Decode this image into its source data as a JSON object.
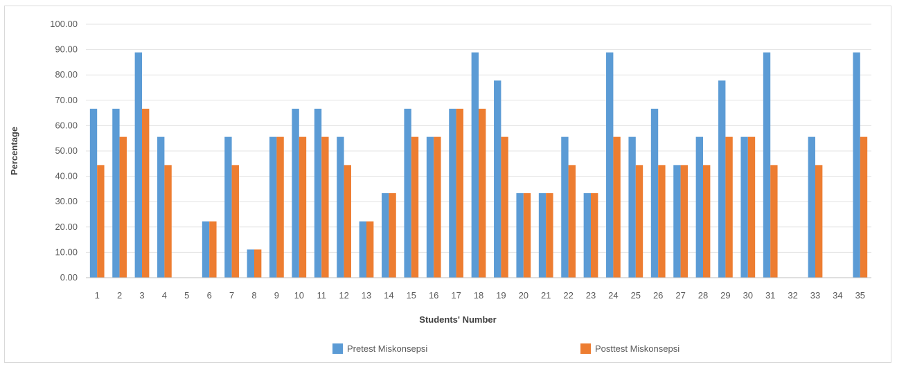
{
  "chart_data": {
    "type": "bar",
    "title": "",
    "xlabel": "Students' Number",
    "ylabel": "Percentage",
    "ylim": [
      0,
      100
    ],
    "y_ticks": [
      "0.00",
      "10.00",
      "20.00",
      "30.00",
      "40.00",
      "50.00",
      "60.00",
      "70.00",
      "80.00",
      "90.00",
      "100.00"
    ],
    "grid": true,
    "legend_position": "bottom",
    "categories": [
      "1",
      "2",
      "3",
      "4",
      "5",
      "6",
      "7",
      "8",
      "9",
      "10",
      "11",
      "12",
      "13",
      "14",
      "15",
      "16",
      "17",
      "18",
      "19",
      "20",
      "21",
      "22",
      "23",
      "24",
      "25",
      "26",
      "27",
      "28",
      "29",
      "30",
      "31",
      "32",
      "33",
      "34",
      "35"
    ],
    "series": [
      {
        "name": "Pretest Miskonsepsi",
        "color": "#5b9bd5",
        "values": [
          66.67,
          66.67,
          88.89,
          55.56,
          0,
          22.22,
          55.56,
          11.11,
          55.56,
          66.67,
          66.67,
          55.56,
          22.22,
          33.33,
          66.67,
          55.56,
          66.67,
          88.89,
          77.78,
          33.33,
          33.33,
          55.56,
          33.33,
          88.89,
          55.56,
          66.67,
          44.44,
          55.56,
          77.78,
          55.56,
          88.89,
          0,
          55.56,
          0,
          88.89
        ]
      },
      {
        "name": "Posttest Miskonsepsi",
        "color": "#ed7d31",
        "values": [
          44.44,
          55.56,
          66.67,
          44.44,
          0,
          22.22,
          44.44,
          11.11,
          55.56,
          55.56,
          55.56,
          44.44,
          22.22,
          33.33,
          55.56,
          55.56,
          66.67,
          66.67,
          55.56,
          33.33,
          33.33,
          44.44,
          33.33,
          55.56,
          44.44,
          44.44,
          44.44,
          44.44,
          55.56,
          55.56,
          44.44,
          0,
          44.44,
          0,
          55.56
        ]
      }
    ]
  }
}
